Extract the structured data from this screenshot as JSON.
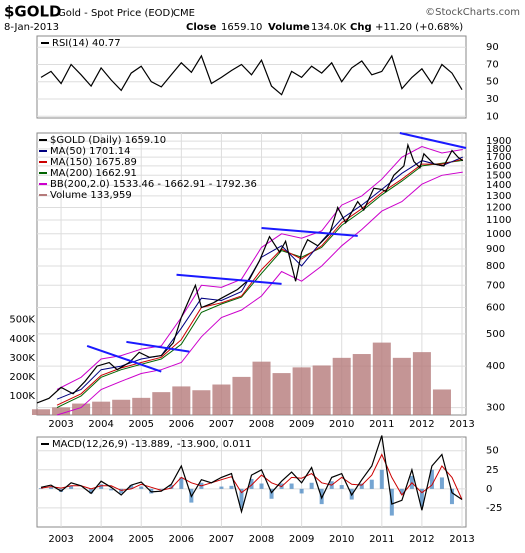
{
  "header": {
    "symbol": "$GOLD",
    "name": "Gold - Spot Price (EOD)",
    "exchange": "CME",
    "credit": "©StockCharts.com",
    "date": "8-Jan-2013",
    "close_label": "Close",
    "close": "1659.10",
    "volume_label": "Volume",
    "volume": "134.0K",
    "change_label": "Chg",
    "change": "+11.20 (+0.68%)"
  },
  "chart_data": [
    {
      "type": "line",
      "xlim": [
        2002.4,
        2013.1
      ],
      "ylim": [
        8,
        103
      ],
      "yticks": [
        10,
        30,
        50,
        70,
        90
      ],
      "grid": true,
      "x": [
        2002.5,
        2002.75,
        2003,
        2003.25,
        2003.5,
        2003.75,
        2004,
        2004.25,
        2004.5,
        2004.75,
        2005,
        2005.25,
        2005.5,
        2005.75,
        2006,
        2006.25,
        2006.5,
        2006.75,
        2007,
        2007.25,
        2007.5,
        2007.75,
        2008,
        2008.25,
        2008.5,
        2008.75,
        2009,
        2009.25,
        2009.5,
        2009.75,
        2010,
        2010.25,
        2010.5,
        2010.75,
        2011,
        2011.25,
        2011.5,
        2011.75,
        2012,
        2012.25,
        2012.5,
        2012.75,
        2013
      ],
      "series": [
        {
          "name": "RSI(14) 40.77",
          "color": "#000000",
          "values": [
            55,
            62,
            48,
            70,
            58,
            45,
            66,
            52,
            40,
            60,
            68,
            50,
            44,
            58,
            72,
            61,
            80,
            48,
            55,
            63,
            70,
            58,
            75,
            45,
            35,
            62,
            55,
            68,
            60,
            72,
            50,
            66,
            74,
            58,
            62,
            80,
            42,
            55,
            65,
            48,
            70,
            60,
            40.77
          ]
        }
      ]
    },
    {
      "type": "line",
      "log_scale": true,
      "grid": true,
      "xlim": [
        2002.4,
        2013.1
      ],
      "ylim": [
        285,
        2010
      ],
      "xticks": [
        2003,
        2004,
        2005,
        2006,
        2007,
        2008,
        2009,
        2010,
        2011,
        2012,
        2013
      ],
      "yticks": [
        300,
        400,
        500,
        600,
        700,
        800,
        900,
        1000,
        1100,
        1200,
        1300,
        1400,
        1500,
        1600,
        1700,
        1800,
        1900
      ],
      "y2lim": [
        0,
        1480000
      ],
      "y2ticks": [
        {
          "value": 100000,
          "label": "100K"
        },
        {
          "value": 200000,
          "label": "200K"
        },
        {
          "value": 300000,
          "label": "300K"
        },
        {
          "value": 400000,
          "label": "400K"
        },
        {
          "value": 500000,
          "label": "500K"
        }
      ],
      "volume": {
        "name": "Volume 133,959",
        "color": "#b57a7a",
        "axis": "y2",
        "x": [
          2002.5,
          2003,
          2003.5,
          2004,
          2004.5,
          2005,
          2005.5,
          2006,
          2006.5,
          2007,
          2007.5,
          2008,
          2008.5,
          2009,
          2009.5,
          2010,
          2010.5,
          2011,
          2011.5,
          2012,
          2012.5
        ],
        "values": [
          30000,
          40000,
          60000,
          70000,
          80000,
          90000,
          120000,
          150000,
          130000,
          160000,
          200000,
          280000,
          220000,
          250000,
          260000,
          300000,
          320000,
          380000,
          300000,
          330000,
          133959
        ]
      },
      "series": [
        {
          "name": "$GOLD (Daily) 1659.10",
          "color": "#000000",
          "x": [
            2002.4,
            2002.7,
            2003.0,
            2003.3,
            2003.6,
            2003.9,
            2004.2,
            2004.4,
            2004.7,
            2004.95,
            2005.2,
            2005.5,
            2005.8,
            2006.0,
            2006.35,
            2006.5,
            2006.8,
            2007.0,
            2007.4,
            2007.7,
            2007.95,
            2008.2,
            2008.45,
            2008.6,
            2008.85,
            2009.0,
            2009.15,
            2009.4,
            2009.7,
            2009.9,
            2010.1,
            2010.4,
            2010.55,
            2010.8,
            2011.0,
            2011.1,
            2011.3,
            2011.55,
            2011.65,
            2011.8,
            2011.95,
            2012.05,
            2012.3,
            2012.55,
            2012.75,
            2012.9,
            2013.02
          ],
          "values": [
            310,
            320,
            345,
            330,
            360,
            400,
            410,
            390,
            410,
            440,
            425,
            430,
            470,
            560,
            700,
            600,
            620,
            640,
            680,
            730,
            830,
            980,
            880,
            950,
            720,
            880,
            960,
            920,
            1000,
            1200,
            1080,
            1250,
            1180,
            1370,
            1360,
            1340,
            1500,
            1600,
            1850,
            1650,
            1580,
            1740,
            1620,
            1600,
            1780,
            1700,
            1659.1
          ]
        },
        {
          "name": "MA(50) 1701.14",
          "color": "#000080",
          "x": [
            2002.9,
            2003.5,
            2004,
            2004.5,
            2005,
            2005.5,
            2006,
            2006.5,
            2007,
            2007.5,
            2008,
            2008.5,
            2009,
            2009.5,
            2010,
            2010.5,
            2011,
            2011.5,
            2012,
            2012.5,
            2013.02
          ],
          "values": [
            318,
            340,
            390,
            400,
            420,
            430,
            520,
            640,
            630,
            670,
            850,
            920,
            800,
            950,
            1110,
            1220,
            1360,
            1520,
            1660,
            1600,
            1701.14
          ]
        },
        {
          "name": "MA(150) 1675.89",
          "color": "#cc0000",
          "x": [
            2002.9,
            2003.5,
            2004,
            2004.5,
            2005,
            2005.5,
            2006,
            2006.5,
            2007,
            2007.5,
            2008,
            2008.5,
            2009,
            2009.5,
            2010,
            2010.5,
            2011,
            2011.5,
            2012,
            2012.5,
            2013.02
          ],
          "values": [
            305,
            330,
            375,
            395,
            410,
            425,
            480,
            600,
            620,
            650,
            780,
            900,
            840,
            920,
            1080,
            1190,
            1330,
            1460,
            1620,
            1620,
            1675.89
          ]
        },
        {
          "name": "MA(200) 1662.91",
          "color": "#006400",
          "x": [
            2002.9,
            2003.5,
            2004,
            2004.5,
            2005,
            2005.5,
            2006,
            2006.5,
            2007,
            2007.5,
            2008,
            2008.5,
            2009,
            2009.5,
            2010,
            2010.5,
            2011,
            2011.5,
            2012,
            2012.5,
            2013.02
          ],
          "values": [
            300,
            325,
            370,
            390,
            405,
            420,
            465,
            580,
            615,
            645,
            760,
            890,
            850,
            910,
            1060,
            1170,
            1310,
            1440,
            1600,
            1630,
            1662.91
          ]
        },
        {
          "name": "BB(200,2.0) 1533.46 - 1662.91 - 1792.36",
          "color": "#cc00cc",
          "x": [
            2002.9,
            2003.5,
            2004,
            2004.5,
            2005,
            2005.5,
            2006,
            2006.5,
            2007,
            2007.5,
            2008,
            2008.5,
            2009,
            2009.5,
            2010,
            2010.5,
            2011,
            2011.5,
            2012,
            2012.5,
            2013.02
          ],
          "values": [
            340,
            370,
            420,
            430,
            450,
            460,
            560,
            700,
            690,
            730,
            910,
            1000,
            970,
            1020,
            1220,
            1300,
            1460,
            1700,
            1830,
            1750,
            1792.36
          ],
          "lower": [
            285,
            300,
            340,
            360,
            380,
            390,
            410,
            490,
            560,
            590,
            650,
            770,
            720,
            800,
            920,
            1030,
            1170,
            1250,
            1410,
            1500,
            1533.46
          ]
        }
      ],
      "trend_lines": {
        "color": "#1a1aff",
        "lines": [
          {
            "x": [
              2003.65,
              2005.5
            ],
            "values": [
              460,
              385
            ]
          },
          {
            "x": [
              2004.63,
              2006.2
            ],
            "values": [
              473,
              442
            ]
          },
          {
            "x": [
              2005.88,
              2008.5
            ],
            "values": [
              753,
              707
            ]
          },
          {
            "x": [
              2008.0,
              2010.4
            ],
            "values": [
              1041,
              986
            ]
          },
          {
            "x": [
              2011.45,
              2013.1
            ],
            "values": [
              2010,
              1812
            ]
          }
        ]
      }
    },
    {
      "type": "line",
      "grid": true,
      "xlim": [
        2002.4,
        2013.1
      ],
      "ylim": [
        -50,
        68
      ],
      "xticks": [
        2003,
        2004,
        2005,
        2006,
        2007,
        2008,
        2009,
        2010,
        2011,
        2012,
        2013
      ],
      "yticks": [
        -25,
        0,
        25,
        50
      ],
      "x": [
        2002.5,
        2002.75,
        2003,
        2003.25,
        2003.5,
        2003.75,
        2004,
        2004.25,
        2004.5,
        2004.75,
        2005,
        2005.25,
        2005.5,
        2005.75,
        2006,
        2006.25,
        2006.5,
        2006.75,
        2007,
        2007.25,
        2007.5,
        2007.75,
        2008,
        2008.25,
        2008.5,
        2008.75,
        2009,
        2009.25,
        2009.5,
        2009.75,
        2010,
        2010.25,
        2010.5,
        2010.75,
        2011,
        2011.25,
        2011.5,
        2011.75,
        2012,
        2012.25,
        2012.5,
        2012.75,
        2013
      ],
      "series": [
        {
          "name": "MACD(12,26,9) -13.889,",
          "color": "#000000",
          "values": [
            2,
            5,
            -3,
            8,
            4,
            -6,
            10,
            2,
            -8,
            5,
            9,
            -4,
            -3,
            6,
            30,
            -10,
            12,
            8,
            15,
            20,
            -30,
            18,
            25,
            -5,
            10,
            22,
            8,
            28,
            -12,
            15,
            20,
            -8,
            12,
            30,
            70,
            -20,
            -15,
            25,
            -28,
            30,
            45,
            -5,
            -13.889
          ]
        },
        {
          "name": "-13.900,",
          "color": "#cc0000",
          "values": [
            1,
            3,
            1,
            4,
            4,
            0,
            4,
            4,
            -2,
            0,
            6,
            2,
            -2,
            1,
            15,
            8,
            4,
            8,
            12,
            16,
            -5,
            5,
            18,
            8,
            3,
            15,
            14,
            20,
            8,
            5,
            15,
            6,
            5,
            18,
            45,
            15,
            -8,
            8,
            -5,
            5,
            30,
            15,
            -13.9
          ]
        }
      ],
      "histogram": {
        "name": "0.011",
        "color": "#3a7fbf",
        "values": [
          1,
          2,
          -4,
          4,
          0,
          -6,
          6,
          -2,
          -6,
          5,
          3,
          -6,
          -1,
          5,
          15,
          -18,
          8,
          0,
          3,
          4,
          -25,
          13,
          7,
          -13,
          7,
          7,
          -6,
          8,
          -20,
          10,
          5,
          -14,
          7,
          12,
          25,
          -35,
          -7,
          17,
          -23,
          25,
          15,
          -20,
          0.011
        ]
      }
    }
  ]
}
